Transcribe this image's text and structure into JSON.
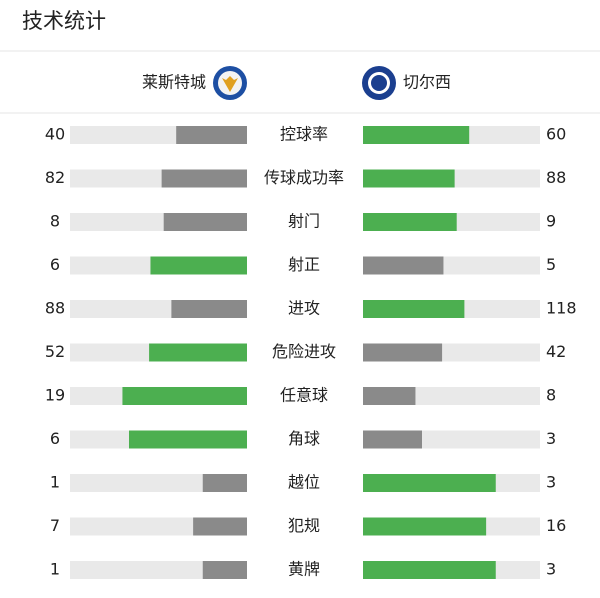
{
  "header": {
    "title": "技术统计"
  },
  "teams": {
    "home": {
      "name": "莱斯特城"
    },
    "away": {
      "name": "切尔西"
    }
  },
  "colors": {
    "leading": "#4caf50",
    "trailing": "#8a8a8a",
    "track": "#e9e9e9"
  },
  "stats": [
    {
      "label": "控球率",
      "home": 40,
      "away": 60
    },
    {
      "label": "传球成功率",
      "home": 82,
      "away": 88
    },
    {
      "label": "射门",
      "home": 8,
      "away": 9
    },
    {
      "label": "射正",
      "home": 6,
      "away": 5
    },
    {
      "label": "进攻",
      "home": 88,
      "away": 118
    },
    {
      "label": "危险进攻",
      "home": 52,
      "away": 42
    },
    {
      "label": "任意球",
      "home": 19,
      "away": 8
    },
    {
      "label": "角球",
      "home": 6,
      "away": 3
    },
    {
      "label": "越位",
      "home": 1,
      "away": 3
    },
    {
      "label": "犯规",
      "home": 7,
      "away": 16
    },
    {
      "label": "黄牌",
      "home": 1,
      "away": 3
    }
  ]
}
